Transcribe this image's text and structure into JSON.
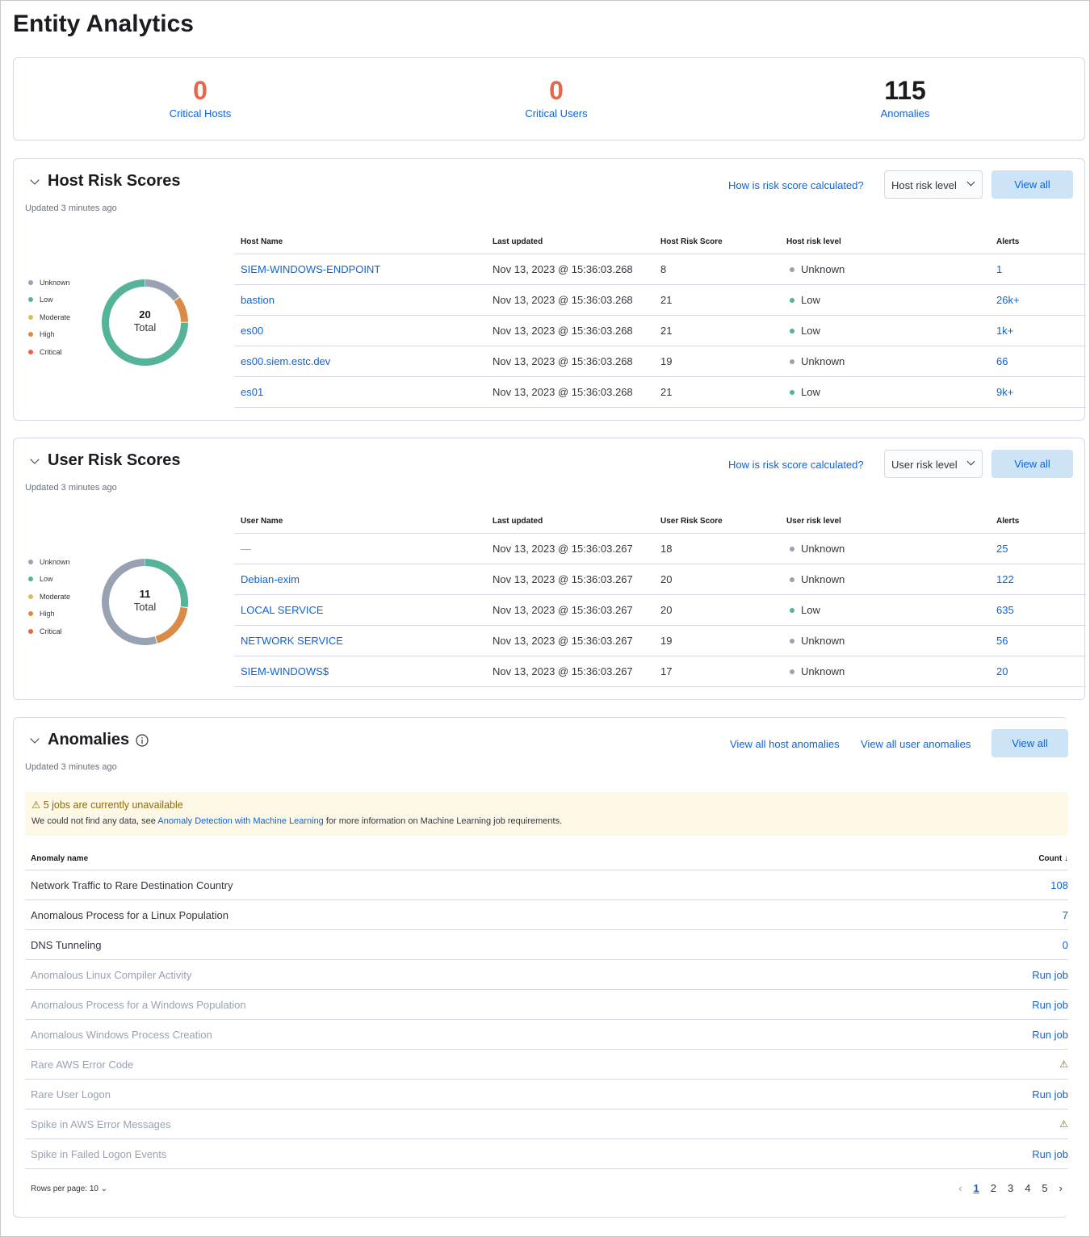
{
  "title": "Entity Analytics",
  "kpis": [
    {
      "value": "0",
      "label": "Critical Hosts",
      "color": "#e7664c"
    },
    {
      "value": "0",
      "label": "Critical Users",
      "color": "#e7664c"
    },
    {
      "value": "115",
      "label": "Anomalies",
      "color": "#1a1c21"
    }
  ],
  "legend": [
    {
      "label": "Unknown",
      "color": "#98a2b3"
    },
    {
      "label": "Low",
      "color": "#54b399"
    },
    {
      "label": "Moderate",
      "color": "#d6bf57"
    },
    {
      "label": "High",
      "color": "#da8b45"
    },
    {
      "label": "Critical",
      "color": "#e7664c"
    }
  ],
  "host": {
    "title": "Host Risk Scores",
    "updated": "Updated 3 minutes ago",
    "how": "How is risk score calculated?",
    "select": "Host risk level",
    "view_all": "View all",
    "donut": {
      "total": "20",
      "total_label": "Total",
      "segments": [
        {
          "level": "Unknown",
          "value": 3
        },
        {
          "level": "High",
          "value": 2
        },
        {
          "level": "Low",
          "value": 15
        }
      ]
    },
    "columns": [
      "Host Name",
      "Last updated",
      "Host Risk Score",
      "Host risk level",
      "Alerts"
    ],
    "rows": [
      [
        "SIEM-WINDOWS-ENDPOINT",
        "Nov 13, 2023 @ 15:36:03.268",
        "8",
        "Unknown",
        "1"
      ],
      [
        "bastion",
        "Nov 13, 2023 @ 15:36:03.268",
        "21",
        "Low",
        "26k+"
      ],
      [
        "es00",
        "Nov 13, 2023 @ 15:36:03.268",
        "21",
        "Low",
        "1k+"
      ],
      [
        "es00.siem.estc.dev",
        "Nov 13, 2023 @ 15:36:03.268",
        "19",
        "Unknown",
        "66"
      ],
      [
        "es01",
        "Nov 13, 2023 @ 15:36:03.268",
        "21",
        "Low",
        "9k+"
      ]
    ]
  },
  "user": {
    "title": "User Risk Scores",
    "updated": "Updated 3 minutes ago",
    "how": "How is risk score calculated?",
    "select": "User risk level",
    "view_all": "View all",
    "donut": {
      "total": "11",
      "total_label": "Total",
      "segments": [
        {
          "level": "Low",
          "value": 3
        },
        {
          "level": "High",
          "value": 2
        },
        {
          "level": "Unknown",
          "value": 6
        }
      ]
    },
    "columns": [
      "User Name",
      "Last updated",
      "User Risk Score",
      "User risk level",
      "Alerts"
    ],
    "rows": [
      [
        "—",
        "Nov 13, 2023 @ 15:36:03.267",
        "18",
        "Unknown",
        "25"
      ],
      [
        "Debian-exim",
        "Nov 13, 2023 @ 15:36:03.267",
        "20",
        "Unknown",
        "122"
      ],
      [
        "LOCAL SERVICE",
        "Nov 13, 2023 @ 15:36:03.267",
        "20",
        "Low",
        "635"
      ],
      [
        "NETWORK SERVICE",
        "Nov 13, 2023 @ 15:36:03.267",
        "19",
        "Unknown",
        "56"
      ],
      [
        "SIEM-WINDOWS$",
        "Nov 13, 2023 @ 15:36:03.267",
        "17",
        "Unknown",
        "20"
      ]
    ]
  },
  "anomalies": {
    "title": "Anomalies",
    "updated": "Updated 3 minutes ago",
    "host_link": "View all host anomalies",
    "user_link": "View all user anomalies",
    "view_all": "View all",
    "callout_title": "5 jobs are currently unavailable",
    "callout_pre": "We could not find any data, see ",
    "callout_link": "Anomaly Detection with Machine Learning",
    "callout_post": " for more information on Machine Learning job requirements.",
    "col_name": "Anomaly name",
    "col_count": "Count",
    "rows": [
      {
        "name": "Network Traffic to Rare Destination Country",
        "count": "108",
        "state": "active"
      },
      {
        "name": "Anomalous Process for a Linux Population",
        "count": "7",
        "state": "active"
      },
      {
        "name": "DNS Tunneling",
        "count": "0",
        "state": "active"
      },
      {
        "name": "Anomalous Linux Compiler Activity",
        "count": "Run job",
        "state": "run"
      },
      {
        "name": "Anomalous Process for a Windows Population",
        "count": "Run job",
        "state": "run"
      },
      {
        "name": "Anomalous Windows Process Creation",
        "count": "Run job",
        "state": "run"
      },
      {
        "name": "Rare AWS Error Code",
        "count": "",
        "state": "warning"
      },
      {
        "name": "Rare User Logon",
        "count": "Run job",
        "state": "run"
      },
      {
        "name": "Spike in AWS Error Messages",
        "count": "",
        "state": "warning"
      },
      {
        "name": "Spike in Failed Logon Events",
        "count": "Run job",
        "state": "run"
      }
    ],
    "rows_per_page": "Rows per page: 10",
    "pages": [
      "1",
      "2",
      "3",
      "4",
      "5"
    ],
    "current_page": "1"
  }
}
